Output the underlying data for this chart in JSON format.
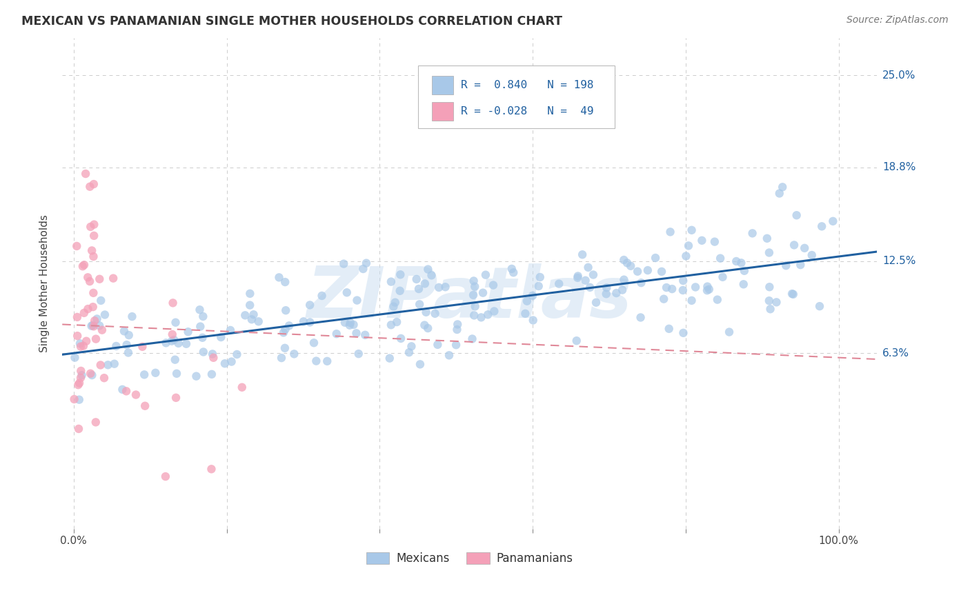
{
  "title": "MEXICAN VS PANAMANIAN SINGLE MOTHER HOUSEHOLDS CORRELATION CHART",
  "source": "Source: ZipAtlas.com",
  "ylabel": "Single Mother Households",
  "watermark": "ZIPatlas",
  "mexican_R": 0.84,
  "mexican_N": 198,
  "panamanian_R": -0.028,
  "panamanian_N": 49,
  "blue_dot_color": "#a8c8e8",
  "pink_dot_color": "#f4a0b8",
  "blue_line_color": "#2060a0",
  "pink_line_color": "#e08898",
  "ytick_vals": [
    0.063,
    0.125,
    0.188,
    0.25
  ],
  "ytick_labels": [
    "6.3%",
    "12.5%",
    "18.8%",
    "25.0%"
  ],
  "xtick_vals": [
    0.0,
    0.2,
    0.4,
    0.6,
    0.8,
    1.0
  ],
  "xtick_labels": [
    "0.0%",
    "",
    "",
    "",
    "",
    "100.0%"
  ],
  "xlim": [
    -0.015,
    1.05
  ],
  "ylim": [
    -0.055,
    0.275
  ],
  "mex_line_x0": 0.0,
  "mex_line_y0": 0.063,
  "mex_line_x1": 1.0,
  "mex_line_y1": 0.128,
  "pan_line_x0": 0.0,
  "pan_line_y0": 0.082,
  "pan_line_x1": 1.0,
  "pan_line_y1": 0.06,
  "legend_labels": [
    "Mexicans",
    "Panamanians"
  ],
  "background_color": "#ffffff",
  "grid_color": "#cccccc",
  "dot_size": 80
}
